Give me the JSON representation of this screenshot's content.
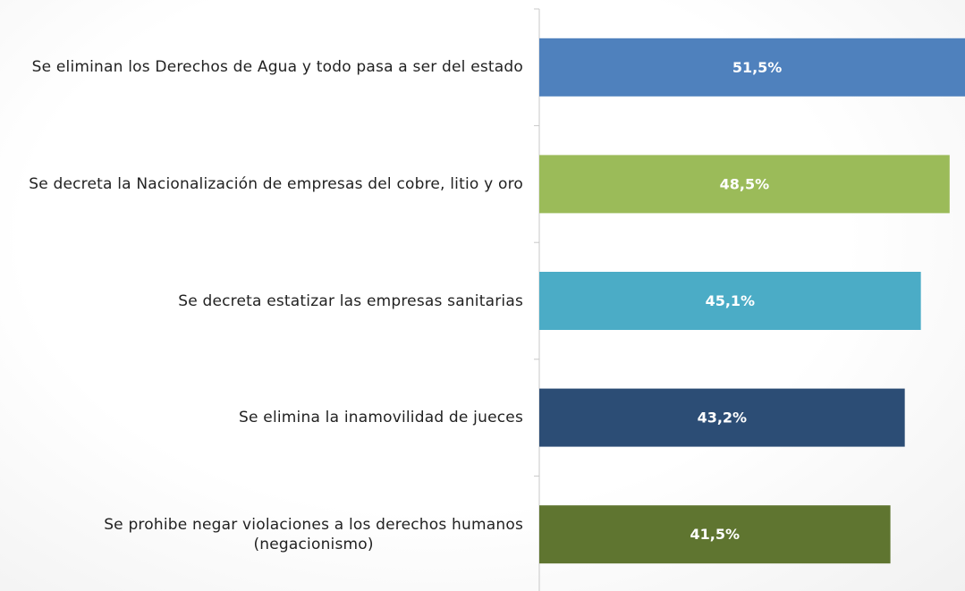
{
  "chart_data": {
    "type": "bar",
    "orientation": "horizontal",
    "categories": [
      "Se eliminan los Derechos de Agua y todo pasa a ser del estado",
      "Se decreta la Nacionalización de empresas del cobre, litio y oro",
      "Se decreta estatizar las empresas sanitarias",
      "Se elimina la inamovilidad de jueces",
      "Se prohibe negar violaciones a los derechos humanos\n(negacionismo)"
    ],
    "values": [
      51.5,
      48.5,
      45.1,
      43.2,
      41.5
    ],
    "value_labels": [
      "51,5%",
      "48,5%",
      "45,1%",
      "43,2%",
      "41,5%"
    ],
    "colors": [
      "#4f81bd",
      "#9bbb59",
      "#4bacc6",
      "#2c4d75",
      "#5f7530"
    ]
  }
}
